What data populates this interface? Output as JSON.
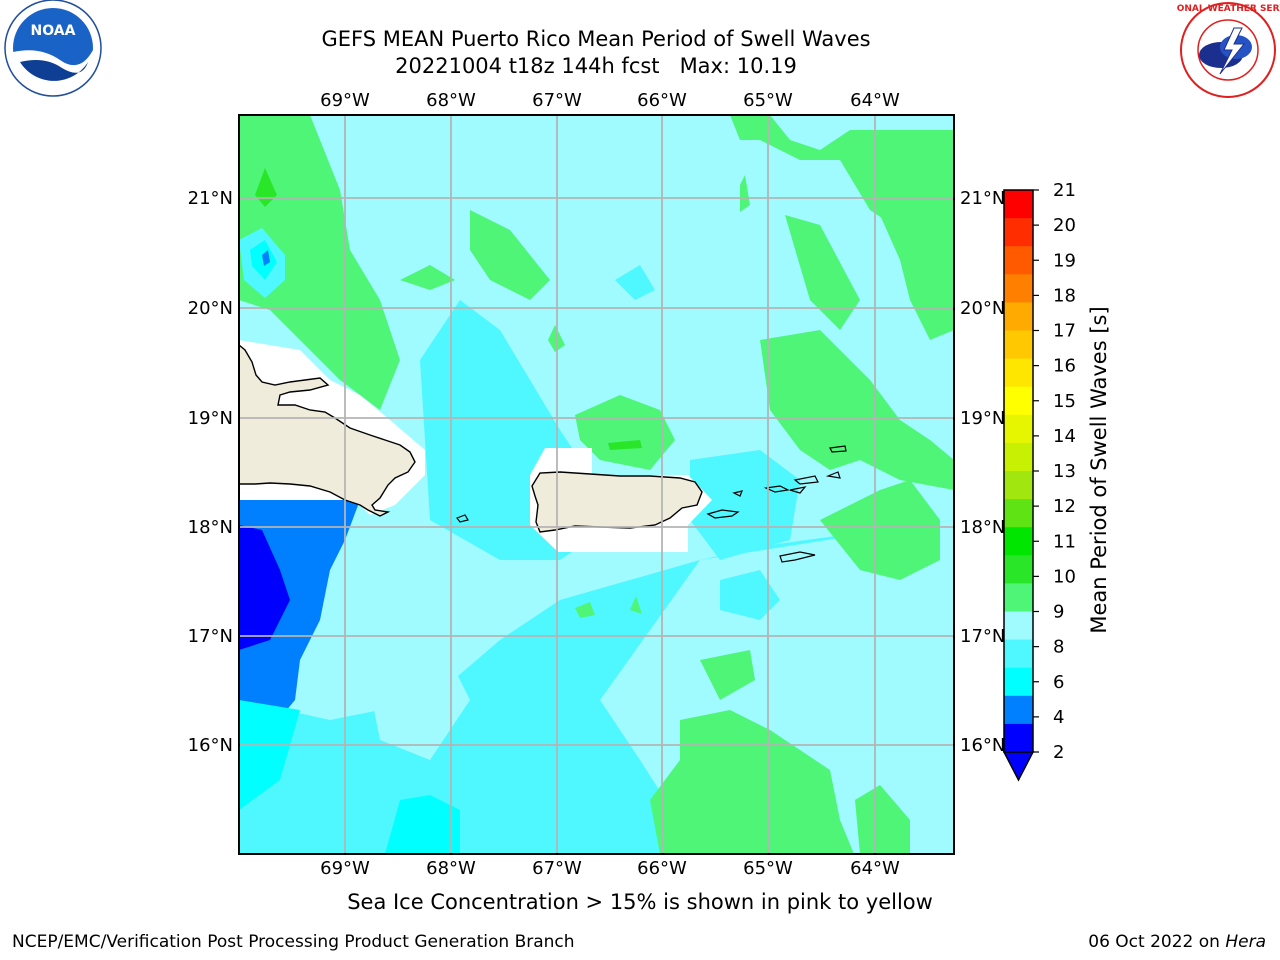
{
  "header": {
    "title_line1": "GEFS MEAN Puerto Rico Mean Period of Swell Waves",
    "title_line2": "20221004 t18z 144h fcst   Max: 10.19"
  },
  "logos": {
    "left": {
      "name": "noaa-logo",
      "text": "NOAA"
    },
    "right": {
      "name": "nws-logo",
      "text": "NATIONAL WEATHER SERVICE"
    }
  },
  "map": {
    "lon_labels": [
      "69°W",
      "68°W",
      "67°W",
      "66°W",
      "65°W",
      "64°W"
    ],
    "lat_labels": [
      "21°N",
      "20°N",
      "19°N",
      "18°N",
      "17°N",
      "16°N"
    ],
    "land_color": "#efecdb",
    "coast_color": "#000000",
    "grid_color": "#b4b4b4"
  },
  "colorbar": {
    "label": "Mean Period of Swell Waves [s]",
    "ticks": [
      "2",
      "4",
      "6",
      "8",
      "9",
      "10",
      "11",
      "12",
      "13",
      "14",
      "15",
      "16",
      "17",
      "18",
      "19",
      "20",
      "21"
    ],
    "colors": [
      "#0000ff",
      "#0080ff",
      "#00ffff",
      "#4ff8ff",
      "#9ffbff",
      "#4ff577",
      "#29e629",
      "#00e600",
      "#5fe314",
      "#a2e60f",
      "#c8f002",
      "#e6f500",
      "#ffff00",
      "#ffe600",
      "#ffc800",
      "#ffaa00",
      "#ff8000",
      "#ff5a00",
      "#ff2d00",
      "#ff0000"
    ]
  },
  "footer": {
    "note": "Sea Ice Concentration > 15% is shown in pink to yellow",
    "credit": "NCEP/EMC/Verification Post Processing Product Generation Branch",
    "date": "06 Oct 2022 on ",
    "host": "Hera"
  }
}
